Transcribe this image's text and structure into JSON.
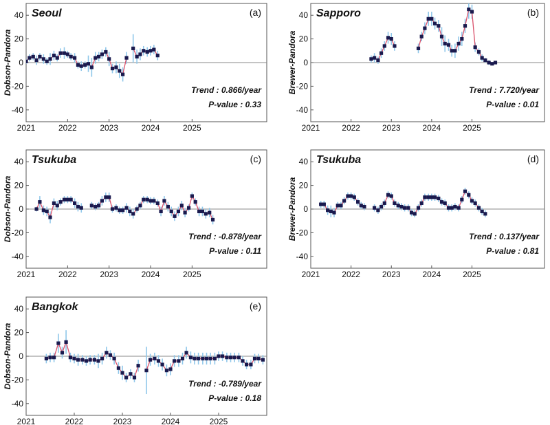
{
  "chart_data": [
    {
      "type": "line",
      "panel_label": "(a)",
      "station": "Seoul",
      "ylabel": "Dobson-Pandora",
      "xlim": [
        2021,
        2026.8
      ],
      "ylim": [
        -50,
        50
      ],
      "xticks": [
        2021,
        2022,
        2023,
        2024,
        2025
      ],
      "yticks": [
        40,
        20,
        0,
        -20,
        -40
      ],
      "trend_text": "Trend : 0.866/year",
      "pvalue_text": "P-value : 0.33",
      "colors": {
        "line": "#d9506a",
        "marker": "#1a1a4e",
        "errorbar": "#8fc7ea",
        "zero": "#888888"
      },
      "series": [
        {
          "x": [
            2021.0,
            2021.08,
            2021.17,
            2021.25,
            2021.33,
            2021.42,
            2021.5,
            2021.58,
            2021.67,
            2021.75,
            2021.83,
            2021.92,
            2022.0,
            2022.08,
            2022.17,
            2022.25,
            2022.33,
            2022.42,
            2022.5,
            2022.58,
            2022.67,
            2022.75,
            2022.83,
            2022.92,
            2023.0,
            2023.08,
            2023.17,
            2023.25,
            2023.33,
            2023.42,
            2023.5,
            2023.58,
            2023.67,
            2023.75,
            2023.83,
            2023.92,
            2024.0,
            2024.08,
            2024.17
          ],
          "y": [
            1,
            4,
            5,
            2,
            5,
            3,
            1,
            3,
            6,
            4,
            8,
            8,
            7,
            5,
            4,
            -2,
            -3,
            -2,
            -1,
            -4,
            4,
            5,
            7,
            9,
            3,
            -5,
            -4,
            -7,
            -10,
            4,
            null,
            12,
            5,
            7,
            10,
            9,
            10,
            11,
            6
          ],
          "err": [
            2,
            3,
            3,
            4,
            3,
            4,
            3,
            5,
            4,
            3,
            4,
            5,
            3,
            3,
            4,
            3,
            4,
            3,
            7,
            8,
            5,
            4,
            4,
            4,
            6,
            4,
            5,
            6,
            6,
            5,
            null,
            12,
            6,
            5,
            4,
            4,
            4,
            4,
            4
          ]
        }
      ]
    },
    {
      "type": "line",
      "panel_label": "(b)",
      "station": "Sapporo",
      "ylabel": "Brewer-Pandora",
      "xlim": [
        2021,
        2026.8
      ],
      "ylim": [
        -50,
        50
      ],
      "xticks": [
        2021,
        2022,
        2023,
        2024,
        2025
      ],
      "yticks": [
        40,
        20,
        0,
        -20,
        -40
      ],
      "trend_text": "Trend : 7.720/year",
      "pvalue_text": "P-value : 0.01",
      "colors": {
        "line": "#d9506a",
        "marker": "#1a1a4e",
        "errorbar": "#8fc7ea",
        "zero": "#888888"
      },
      "series": [
        {
          "x": [
            2022.5,
            2022.58,
            2022.67,
            2022.75,
            2022.83,
            2022.92,
            2023.0,
            2023.08,
            null,
            2023.67,
            2023.75,
            2023.83,
            2023.92,
            2024.0,
            2024.08,
            2024.17,
            2024.25,
            2024.33,
            2024.42,
            2024.5,
            2024.58,
            2024.67,
            2024.75,
            2024.83,
            2024.92,
            2025.0,
            2025.08,
            2025.17,
            2025.25,
            2025.33,
            2025.42,
            2025.5,
            2025.58
          ],
          "y": [
            3,
            4,
            2,
            8,
            14,
            21,
            20,
            14,
            null,
            12,
            22,
            29,
            37,
            37,
            33,
            31,
            22,
            16,
            15,
            10,
            10,
            16,
            20,
            31,
            45,
            43,
            13,
            9,
            4,
            2,
            0,
            -1,
            0
          ],
          "err": [
            3,
            4,
            3,
            4,
            4,
            5,
            5,
            4,
            null,
            4,
            4,
            5,
            6,
            6,
            5,
            5,
            8,
            7,
            5,
            5,
            6,
            6,
            6,
            6,
            8,
            6,
            4,
            3,
            3,
            2,
            2,
            1,
            1
          ]
        }
      ]
    },
    {
      "type": "line",
      "panel_label": "(c)",
      "station": "Tsukuba",
      "ylabel": "Dobson-Pandora",
      "xlim": [
        2021,
        2026.8
      ],
      "ylim": [
        -50,
        50
      ],
      "xticks": [
        2021,
        2022,
        2023,
        2024,
        2025
      ],
      "yticks": [
        40,
        20,
        0,
        -20,
        -40
      ],
      "trend_text": "Trend : -0.878/year",
      "pvalue_text": "P-value : 0.11",
      "colors": {
        "line": "#d9506a",
        "marker": "#1a1a4e",
        "errorbar": "#8fc7ea",
        "zero": "#888888"
      },
      "series": [
        {
          "x": [
            2021.25,
            2021.33,
            2021.42,
            2021.5,
            2021.58,
            2021.67,
            2021.75,
            2021.83,
            2021.92,
            2022.0,
            2022.08,
            2022.17,
            2022.25,
            2022.33,
            null,
            2022.58,
            2022.67,
            2022.75,
            2022.83,
            2022.92,
            2023.0,
            2023.08,
            2023.17,
            2023.25,
            2023.33,
            2023.42,
            2023.5,
            2023.58,
            2023.67,
            2023.75,
            2023.83,
            2023.92,
            2024.0,
            2024.08,
            2024.17,
            2024.25,
            2024.33,
            2024.42,
            2024.5,
            2024.58,
            2024.67,
            2024.75,
            2024.83,
            2024.92,
            2025.0,
            2025.08,
            2025.17,
            2025.25,
            2025.33,
            2025.42,
            2025.5
          ],
          "y": [
            0,
            6,
            -1,
            -2,
            -7,
            5,
            3,
            6,
            8,
            8,
            8,
            5,
            2,
            1,
            null,
            3,
            2,
            3,
            7,
            10,
            10,
            0,
            1,
            -1,
            -1,
            1,
            -2,
            -4,
            0,
            3,
            8,
            8,
            7,
            7,
            5,
            -2,
            7,
            2,
            -2,
            -6,
            -2,
            3,
            -3,
            1,
            11,
            6,
            -2,
            -2,
            -4,
            -3,
            -9
          ],
          "err": [
            2,
            5,
            4,
            4,
            5,
            4,
            4,
            3,
            3,
            3,
            3,
            4,
            4,
            4,
            null,
            3,
            3,
            3,
            4,
            4,
            4,
            3,
            3,
            3,
            3,
            4,
            4,
            4,
            3,
            3,
            3,
            3,
            3,
            3,
            3,
            4,
            4,
            4,
            4,
            4,
            4,
            4,
            4,
            3,
            3,
            3,
            4,
            4,
            4,
            4,
            4
          ]
        }
      ]
    },
    {
      "type": "line",
      "panel_label": "(d)",
      "station": "Tsukuba",
      "ylabel": "Brewer-Pandora",
      "xlim": [
        2021,
        2026.8
      ],
      "ylim": [
        -50,
        50
      ],
      "xticks": [
        2021,
        2022,
        2023,
        2024,
        2025
      ],
      "yticks": [
        40,
        20,
        0,
        -20,
        -40
      ],
      "trend_text": "Trend : 0.137/year",
      "pvalue_text": "P-value : 0.81",
      "colors": {
        "line": "#d9506a",
        "marker": "#1a1a4e",
        "errorbar": "#8fc7ea",
        "zero": "#888888"
      },
      "series": [
        {
          "x": [
            2021.25,
            2021.33,
            2021.42,
            2021.5,
            2021.58,
            2021.67,
            2021.75,
            2021.83,
            2021.92,
            2022.0,
            2022.08,
            2022.17,
            2022.25,
            2022.33,
            null,
            2022.58,
            2022.67,
            2022.75,
            2022.83,
            2022.92,
            2023.0,
            2023.08,
            2023.17,
            2023.25,
            2023.33,
            2023.42,
            2023.5,
            2023.58,
            2023.67,
            2023.75,
            2023.83,
            2023.92,
            2024.0,
            2024.08,
            2024.17,
            2024.25,
            2024.33,
            2024.42,
            2024.5,
            2024.58,
            2024.67,
            2024.75,
            2024.83,
            2024.92,
            2025.0,
            2025.08,
            2025.17,
            2025.25,
            2025.33,
            2025.42,
            2025.5
          ],
          "y": [
            4,
            4,
            -1,
            -2,
            -3,
            3,
            3,
            7,
            11,
            11,
            10,
            6,
            3,
            2,
            null,
            1,
            -1,
            2,
            5,
            12,
            11,
            5,
            3,
            2,
            1,
            1,
            -3,
            -4,
            1,
            5,
            10,
            10,
            10,
            10,
            9,
            6,
            5,
            1,
            1,
            2,
            1,
            8,
            15,
            12,
            7,
            5,
            1,
            -2,
            -4,
            null,
            null
          ],
          "err": [
            3,
            3,
            4,
            5,
            4,
            3,
            3,
            3,
            3,
            3,
            3,
            3,
            3,
            3,
            null,
            3,
            3,
            3,
            3,
            3,
            3,
            3,
            3,
            3,
            3,
            3,
            3,
            3,
            3,
            3,
            3,
            3,
            3,
            3,
            3,
            3,
            3,
            3,
            3,
            3,
            3,
            3,
            3,
            3,
            3,
            3,
            3,
            3,
            3,
            null,
            null
          ]
        }
      ]
    },
    {
      "type": "line",
      "panel_label": "(e)",
      "station": "Bangkok",
      "ylabel": "Dobson-Pandora",
      "xlim": [
        2021,
        2026.0
      ],
      "ylim": [
        -50,
        50
      ],
      "xticks": [
        2021,
        2022,
        2023,
        2024,
        2025
      ],
      "yticks": [
        40,
        20,
        0,
        -20,
        -40
      ],
      "trend_text": "Trend : -0.789/year",
      "pvalue_text": "P-value : 0.18",
      "colors": {
        "line": "#d9506a",
        "marker": "#1a1a4e",
        "errorbar": "#8fc7ea",
        "zero": "#888888"
      },
      "series": [
        {
          "x": [
            2021.42,
            2021.5,
            2021.58,
            2021.67,
            2021.75,
            2021.83,
            2021.92,
            2022.0,
            2022.08,
            2022.17,
            2022.25,
            2022.33,
            2022.42,
            2022.5,
            2022.58,
            2022.67,
            2022.75,
            2022.83,
            2022.92,
            2023.0,
            2023.08,
            2023.17,
            2023.25,
            2023.33,
            2023.42,
            2023.5,
            2023.58,
            2023.67,
            2023.75,
            2023.83,
            2023.92,
            2024.0,
            2024.08,
            2024.17,
            2024.25,
            2024.33,
            2024.42,
            2024.5,
            2024.58,
            2024.67,
            2024.75,
            2024.83,
            2024.92,
            2025.0,
            2025.08,
            2025.17,
            2025.25,
            2025.33,
            2025.42,
            2025.5,
            2025.58,
            2025.67,
            2025.75,
            2025.83,
            2025.92
          ],
          "y": [
            -2,
            -1,
            -1,
            11,
            3,
            12,
            -1,
            -2,
            -3,
            -3,
            -4,
            -3,
            -3,
            -4,
            -2,
            3,
            1,
            -2,
            -10,
            -14,
            -18,
            -15,
            -18,
            -8,
            null,
            -12,
            -3,
            -2,
            -4,
            -7,
            -12,
            -11,
            -4,
            -4,
            -2,
            3,
            -1,
            -2,
            -2,
            -2,
            -2,
            -2,
            -2,
            0,
            0,
            -1,
            -1,
            -1,
            -1,
            -4,
            -7,
            -7,
            -2,
            -2,
            -3
          ],
          "err": [
            4,
            4,
            4,
            8,
            5,
            10,
            4,
            4,
            5,
            4,
            4,
            4,
            4,
            6,
            5,
            5,
            4,
            5,
            5,
            6,
            4,
            4,
            4,
            5,
            null,
            20,
            5,
            5,
            5,
            5,
            5,
            5,
            5,
            5,
            5,
            5,
            5,
            5,
            5,
            5,
            5,
            5,
            5,
            4,
            4,
            4,
            4,
            4,
            4,
            4,
            4,
            4,
            4,
            4,
            4
          ]
        }
      ]
    }
  ]
}
